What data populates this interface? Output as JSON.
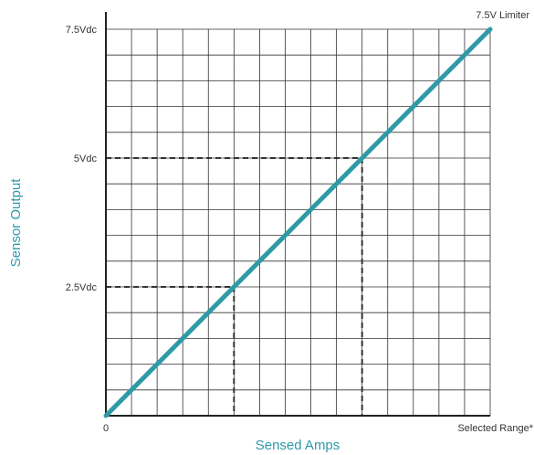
{
  "chart_data": {
    "type": "line",
    "xlabel": "Sensed Amps",
    "ylabel": "Sensor Output",
    "x_tick_labels": {
      "min": "0",
      "max": "Selected Range*"
    },
    "y_ticks": [
      {
        "value": 2.5,
        "label": "2.5Vdc"
      },
      {
        "value": 5,
        "label": "5Vdc"
      },
      {
        "value": 7.5,
        "label": "7.5Vdc"
      }
    ],
    "xlim": [
      0,
      1
    ],
    "ylim": [
      0,
      7.5
    ],
    "grid": true,
    "series": [
      {
        "x": [
          0,
          1
        ],
        "y": [
          0,
          7.5
        ],
        "color": "#2e9aa8"
      }
    ],
    "reference_points": [
      {
        "x": 0.3333,
        "y": 2.5
      },
      {
        "x": 0.6667,
        "y": 5
      }
    ],
    "annotations": [
      {
        "text": "7.5V Limiter",
        "x": 1,
        "y": 7.5
      }
    ],
    "colors": {
      "line": "#2e9aa8",
      "axis_title": "#2e9aa8",
      "grid": "#333333",
      "axis": "#222222",
      "reference": "#333333"
    }
  }
}
